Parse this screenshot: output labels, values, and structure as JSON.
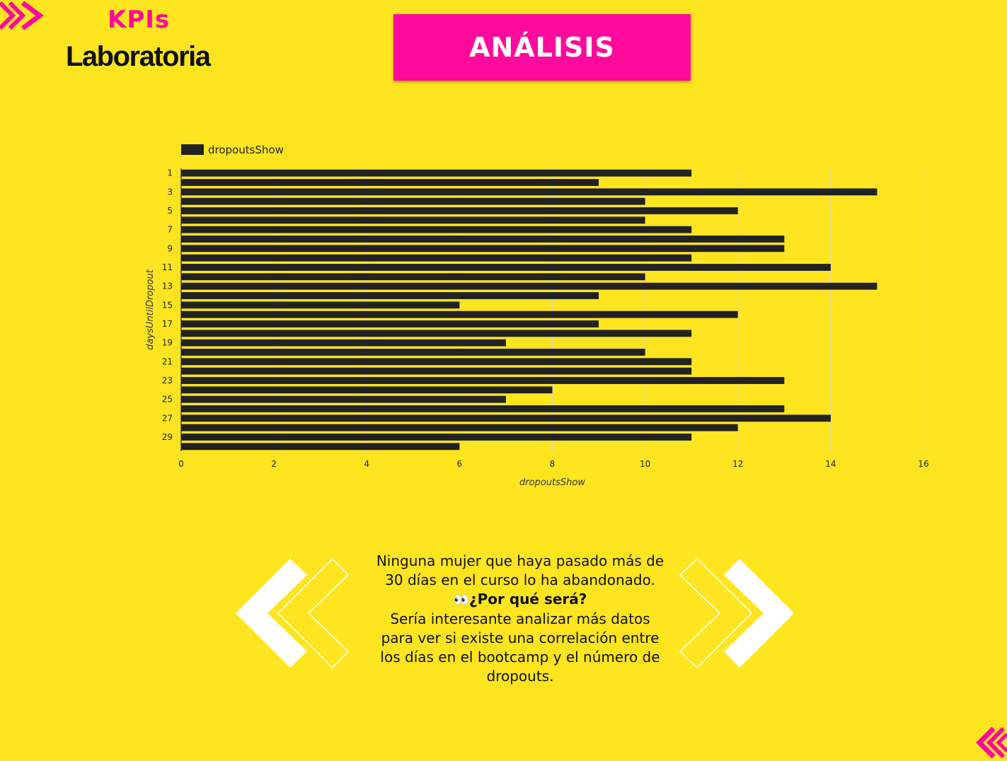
{
  "header": {
    "kpis_label": "KPIs",
    "brand": "Laboratoria",
    "title": "ANÁLISIS"
  },
  "colors": {
    "background": "#FFE51F",
    "accent": "#FF0A9C",
    "bar": "#222222"
  },
  "icons": {
    "corner_tl": "double-chevron-right-icon",
    "corner_br": "double-chevron-left-icon",
    "deco_left": "double-chevron-left-icon",
    "deco_right": "double-chevron-right-icon",
    "eyes": "eyes-icon"
  },
  "chart_data": {
    "type": "bar",
    "orientation": "horizontal",
    "legend": "dropoutsShow",
    "legend_position": "top-left",
    "xlabel": "dropoutsShow",
    "ylabel": "daysUntilDropout",
    "xlim": [
      0,
      16
    ],
    "x_ticks": [
      0,
      2,
      4,
      6,
      8,
      10,
      12,
      14,
      16
    ],
    "grid": true,
    "categories": [
      1,
      2,
      3,
      4,
      5,
      6,
      7,
      8,
      9,
      10,
      11,
      12,
      13,
      14,
      15,
      16,
      17,
      18,
      19,
      20,
      21,
      22,
      23,
      24,
      25,
      26,
      27,
      28,
      29,
      30
    ],
    "y_tick_labels": [
      "1",
      "3",
      "5",
      "7",
      "9",
      "11",
      "13",
      "15",
      "17",
      "19",
      "21",
      "23",
      "25",
      "27",
      "29"
    ],
    "series": [
      {
        "name": "dropoutsShow",
        "values": [
          11,
          9,
          15,
          10,
          12,
          10,
          11,
          13,
          13,
          11,
          14,
          10,
          15,
          9,
          6,
          12,
          9,
          11,
          7,
          10,
          11,
          11,
          13,
          8,
          7,
          13,
          14,
          12,
          11,
          6
        ]
      }
    ]
  },
  "note": {
    "line1": "Ninguna mujer que haya pasado más de 30 días en el curso lo ha abandonado.",
    "eyes": "👀",
    "question": "¿Por qué será?",
    "line2": "Sería interesante analizar más datos para ver si existe una correlación entre los días en el bootcamp y el número de dropouts."
  }
}
